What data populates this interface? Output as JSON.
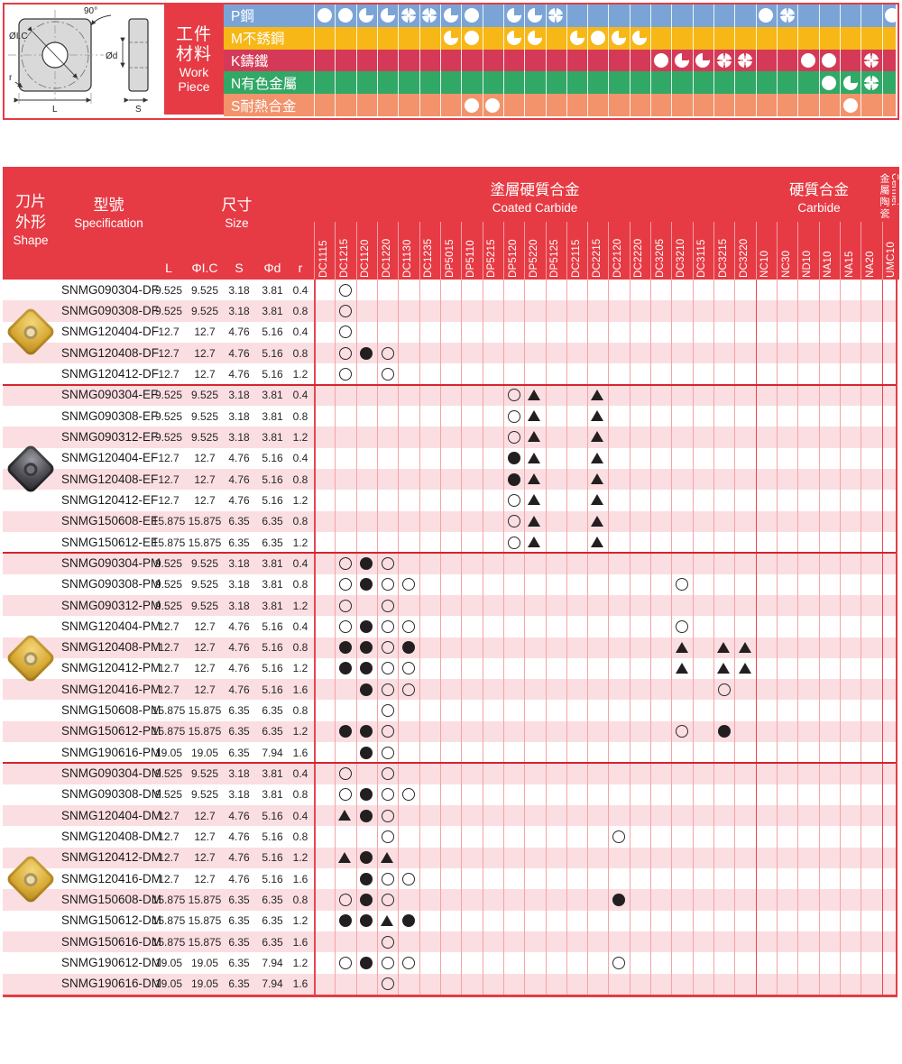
{
  "colors": {
    "accent_red": "#e63b44",
    "divider_red": "#d4252e",
    "stripe_pink": "#fbdee1",
    "grid_light": "#f5a3a8",
    "grid_strong": "#e8474f",
    "symbol_dark": "#231f20"
  },
  "diagram": {
    "labels": {
      "ic": "ØI.C",
      "angle": "90°",
      "d": "Ød",
      "r": "r",
      "L": "L",
      "S": "S"
    }
  },
  "workpiece_panel": {
    "title_lines": [
      "工件",
      "材料",
      "Work",
      "Piece"
    ],
    "materials": [
      {
        "label": "P鋼",
        "color": "#7ba4d6",
        "marks": {
          "DC1115": "full",
          "DC1215": "full",
          "DC1120": "pac",
          "DC1220": "pac",
          "DC1130": "quad",
          "DC1235": "quad",
          "DP5015": "pac",
          "DP5110": "full",
          "DP5120": "pac",
          "DP5220": "pac",
          "DP5125": "quad",
          "NC10": "full",
          "NC30": "quad",
          "UMC10": "full"
        }
      },
      {
        "label": "M不銹鋼",
        "color": "#f7b716",
        "marks": {
          "DP5015": "pac",
          "DP5110": "full",
          "DP5120": "pac",
          "DP5220": "pac",
          "DC2115": "pac",
          "DC2215": "full",
          "DC2120": "pac",
          "DC2220": "pac"
        }
      },
      {
        "label": "K鑄鐵",
        "color": "#d43a57",
        "marks": {
          "DC3205": "full",
          "DC3210": "pac",
          "DC3115": "pac",
          "DC3215": "quad",
          "DC3220": "quad",
          "ND10": "full",
          "NA10": "full",
          "NA20": "quad"
        }
      },
      {
        "label": "N有色金屬",
        "color": "#31a866",
        "marks": {
          "NA10": "full",
          "NA15": "pac",
          "NA20": "quad"
        }
      },
      {
        "label": "S耐熱合金",
        "color": "#f2936b",
        "marks": {
          "DP5110": "full",
          "DP5215": "full",
          "NA15": "full"
        }
      }
    ]
  },
  "table": {
    "shape_header": {
      "zh": [
        "刀片",
        "外形"
      ],
      "en": "Shape"
    },
    "spec_header": {
      "zh": "型號",
      "en": "Specification"
    },
    "size_header": {
      "zh": "尺寸",
      "en": "Size"
    },
    "size_columns": [
      "L",
      "ΦI.C",
      "S",
      "Φd",
      "r"
    ],
    "material_groups": [
      {
        "zh": "塗層硬質合金",
        "en": "Coated Carbide",
        "cols": 21
      },
      {
        "zh": "硬質合金",
        "en": "Carbide",
        "cols": 6
      },
      {
        "zh": "金屬陶瓷",
        "en": "Cermet",
        "cols": 1
      }
    ],
    "columns": [
      "DC1115",
      "DC1215",
      "DC1120",
      "DC1220",
      "DC1130",
      "DC1235",
      "DP5015",
      "DP5110",
      "DP5215",
      "DP5120",
      "DP5220",
      "DP5125",
      "DC2115",
      "DC2215",
      "DC2120",
      "DC2220",
      "DC3205",
      "DC3210",
      "DC3115",
      "DC3215",
      "DC3220",
      "NC10",
      "NC30",
      "ND10",
      "NA10",
      "NA15",
      "NA20",
      "UMC10"
    ],
    "groups": [
      {
        "icon": "gold",
        "rows": [
          {
            "spec": "SNMG090304-DF",
            "dims": [
              "9.525",
              "9.525",
              "3.18",
              "3.81",
              "0.4"
            ],
            "marks": {
              "DC1215": "open"
            }
          },
          {
            "spec": "SNMG090308-DF",
            "dims": [
              "9.525",
              "9.525",
              "3.18",
              "3.81",
              "0.8"
            ],
            "marks": {
              "DC1215": "open"
            }
          },
          {
            "spec": "SNMG120404-DF",
            "dims": [
              "12.7",
              "12.7",
              "4.76",
              "5.16",
              "0.4"
            ],
            "marks": {
              "DC1215": "open"
            }
          },
          {
            "spec": "SNMG120408-DF",
            "dims": [
              "12.7",
              "12.7",
              "4.76",
              "5.16",
              "0.8"
            ],
            "marks": {
              "DC1215": "open",
              "DC1120": "filled",
              "DC1220": "open"
            }
          },
          {
            "spec": "SNMG120412-DF",
            "dims": [
              "12.7",
              "12.7",
              "4.76",
              "5.16",
              "1.2"
            ],
            "marks": {
              "DC1215": "open",
              "DC1220": "open"
            }
          }
        ]
      },
      {
        "icon": "dark",
        "rows": [
          {
            "spec": "SNMG090304-EF",
            "dims": [
              "9.525",
              "9.525",
              "3.18",
              "3.81",
              "0.4"
            ],
            "marks": {
              "DP5120": "open",
              "DP5220": "tri",
              "DC2215": "tri"
            }
          },
          {
            "spec": "SNMG090308-EF",
            "dims": [
              "9.525",
              "9.525",
              "3.18",
              "3.81",
              "0.8"
            ],
            "marks": {
              "DP5120": "open",
              "DP5220": "tri",
              "DC2215": "tri"
            }
          },
          {
            "spec": "SNMG090312-EF",
            "dims": [
              "9.525",
              "9.525",
              "3.18",
              "3.81",
              "1.2"
            ],
            "marks": {
              "DP5120": "open",
              "DP5220": "tri",
              "DC2215": "tri"
            }
          },
          {
            "spec": "SNMG120404-EF",
            "dims": [
              "12.7",
              "12.7",
              "4.76",
              "5.16",
              "0.4"
            ],
            "marks": {
              "DP5120": "filled",
              "DP5220": "tri",
              "DC2215": "tri"
            }
          },
          {
            "spec": "SNMG120408-EF",
            "dims": [
              "12.7",
              "12.7",
              "4.76",
              "5.16",
              "0.8"
            ],
            "marks": {
              "DP5120": "filled",
              "DP5220": "tri",
              "DC2215": "tri"
            }
          },
          {
            "spec": "SNMG120412-EF",
            "dims": [
              "12.7",
              "12.7",
              "4.76",
              "5.16",
              "1.2"
            ],
            "marks": {
              "DP5120": "open",
              "DP5220": "tri",
              "DC2215": "tri"
            }
          },
          {
            "spec": "SNMG150608-EF",
            "dims": [
              "15.875",
              "15.875",
              "6.35",
              "6.35",
              "0.8"
            ],
            "marks": {
              "DP5120": "open",
              "DP5220": "tri",
              "DC2215": "tri"
            }
          },
          {
            "spec": "SNMG150612-EF",
            "dims": [
              "15.875",
              "15.875",
              "6.35",
              "6.35",
              "1.2"
            ],
            "marks": {
              "DP5120": "open",
              "DP5220": "tri",
              "DC2215": "tri"
            }
          }
        ]
      },
      {
        "icon": "gold",
        "rows": [
          {
            "spec": "SNMG090304-PM",
            "dims": [
              "9.525",
              "9.525",
              "3.18",
              "3.81",
              "0.4"
            ],
            "marks": {
              "DC1215": "open",
              "DC1120": "filled",
              "DC1220": "open"
            }
          },
          {
            "spec": "SNMG090308-PM",
            "dims": [
              "9.525",
              "9.525",
              "3.18",
              "3.81",
              "0.8"
            ],
            "marks": {
              "DC1215": "open",
              "DC1120": "filled",
              "DC1220": "open",
              "DC1130": "open",
              "DC3210": "open"
            }
          },
          {
            "spec": "SNMG090312-PM",
            "dims": [
              "9.525",
              "9.525",
              "3.18",
              "3.81",
              "1.2"
            ],
            "marks": {
              "DC1215": "open",
              "DC1220": "open"
            }
          },
          {
            "spec": "SNMG120404-PM",
            "dims": [
              "12.7",
              "12.7",
              "4.76",
              "5.16",
              "0.4"
            ],
            "marks": {
              "DC1215": "open",
              "DC1120": "filled",
              "DC1220": "open",
              "DC1130": "open",
              "DC3210": "open"
            }
          },
          {
            "spec": "SNMG120408-PM",
            "dims": [
              "12.7",
              "12.7",
              "4.76",
              "5.16",
              "0.8"
            ],
            "marks": {
              "DC1215": "filled",
              "DC1120": "filled",
              "DC1220": "open",
              "DC1130": "filled",
              "DC3210": "tri",
              "DC3215": "tri",
              "DC3220": "tri"
            }
          },
          {
            "spec": "SNMG120412-PM",
            "dims": [
              "12.7",
              "12.7",
              "4.76",
              "5.16",
              "1.2"
            ],
            "marks": {
              "DC1215": "filled",
              "DC1120": "filled",
              "DC1220": "open",
              "DC1130": "open",
              "DC3210": "tri",
              "DC3215": "tri",
              "DC3220": "tri"
            }
          },
          {
            "spec": "SNMG120416-PM",
            "dims": [
              "12.7",
              "12.7",
              "4.76",
              "5.16",
              "1.6"
            ],
            "marks": {
              "DC1120": "filled",
              "DC1220": "open",
              "DC1130": "open",
              "DC3215": "open"
            }
          },
          {
            "spec": "SNMG150608-PM",
            "dims": [
              "15.875",
              "15.875",
              "6.35",
              "6.35",
              "0.8"
            ],
            "marks": {
              "DC1220": "open"
            }
          },
          {
            "spec": "SNMG150612-PM",
            "dims": [
              "15.875",
              "15.875",
              "6.35",
              "6.35",
              "1.2"
            ],
            "marks": {
              "DC1215": "filled",
              "DC1120": "filled",
              "DC1220": "open",
              "DC3210": "open",
              "DC3215": "filled"
            }
          },
          {
            "spec": "SNMG190616-PM",
            "dims": [
              "19.05",
              "19.05",
              "6.35",
              "7.94",
              "1.6"
            ],
            "marks": {
              "DC1120": "filled",
              "DC1220": "open"
            }
          }
        ]
      },
      {
        "icon": "gold",
        "rows": [
          {
            "spec": "SNMG090304-DM",
            "dims": [
              "9.525",
              "9.525",
              "3.18",
              "3.81",
              "0.4"
            ],
            "marks": {
              "DC1215": "open",
              "DC1220": "open"
            }
          },
          {
            "spec": "SNMG090308-DM",
            "dims": [
              "9.525",
              "9.525",
              "3.18",
              "3.81",
              "0.8"
            ],
            "marks": {
              "DC1215": "open",
              "DC1120": "filled",
              "DC1220": "open",
              "DC1130": "open"
            }
          },
          {
            "spec": "SNMG120404-DM",
            "dims": [
              "12.7",
              "12.7",
              "4.76",
              "5.16",
              "0.4"
            ],
            "marks": {
              "DC1215": "tri",
              "DC1120": "filled",
              "DC1220": "open"
            }
          },
          {
            "spec": "SNMG120408-DM",
            "dims": [
              "12.7",
              "12.7",
              "4.76",
              "5.16",
              "0.8"
            ],
            "marks": {
              "DC1220": "open",
              "DC2120": "open"
            }
          },
          {
            "spec": "SNMG120412-DM",
            "dims": [
              "12.7",
              "12.7",
              "4.76",
              "5.16",
              "1.2"
            ],
            "marks": {
              "DC1215": "tri",
              "DC1120": "filled",
              "DC1220": "tri"
            }
          },
          {
            "spec": "SNMG120416-DM",
            "dims": [
              "12.7",
              "12.7",
              "4.76",
              "5.16",
              "1.6"
            ],
            "marks": {
              "DC1120": "filled",
              "DC1220": "open",
              "DC1130": "open"
            }
          },
          {
            "spec": "SNMG150608-DM",
            "dims": [
              "15.875",
              "15.875",
              "6.35",
              "6.35",
              "0.8"
            ],
            "marks": {
              "DC1215": "open",
              "DC1120": "filled",
              "DC1220": "open",
              "DC2120": "filled"
            }
          },
          {
            "spec": "SNMG150612-DM",
            "dims": [
              "15.875",
              "15.875",
              "6.35",
              "6.35",
              "1.2"
            ],
            "marks": {
              "DC1215": "filled",
              "DC1120": "filled",
              "DC1220": "tri",
              "DC1130": "filled"
            }
          },
          {
            "spec": "SNMG150616-DM",
            "dims": [
              "15.875",
              "15.875",
              "6.35",
              "6.35",
              "1.6"
            ],
            "marks": {
              "DC1220": "open"
            }
          },
          {
            "spec": "SNMG190612-DM",
            "dims": [
              "19.05",
              "19.05",
              "6.35",
              "7.94",
              "1.2"
            ],
            "marks": {
              "DC1215": "open",
              "DC1120": "filled",
              "DC1220": "open",
              "DC1130": "open",
              "DC2120": "open"
            }
          },
          {
            "spec": "SNMG190616-DM",
            "dims": [
              "19.05",
              "19.05",
              "6.35",
              "7.94",
              "1.6"
            ],
            "marks": {
              "DC1220": "open"
            }
          }
        ]
      }
    ]
  }
}
